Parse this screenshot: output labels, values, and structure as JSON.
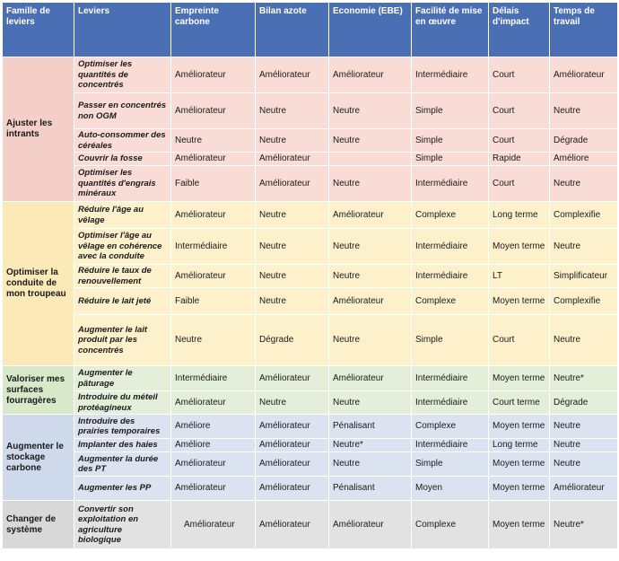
{
  "headers": [
    "Famille de leviers",
    "Leviers",
    "Empreinte carbone",
    "Bilan azote",
    "Economie (EBE)",
    "Facilité de mise en œuvre",
    "Délais d'impact",
    "Temps de travail"
  ],
  "groups": [
    {
      "famille": "Ajuster les intrants",
      "color": "#f9dcd6",
      "rows": [
        {
          "levier": "Optimiser les quantités de concentrés",
          "empreinte": "Améliorateur",
          "azote": "Améliorateur",
          "economie": "Améliorateur",
          "facilite": "Intermédiaire",
          "delais": "Court",
          "temps": "Améliorateur"
        },
        {
          "levier": "Passer en concentrés non OGM",
          "empreinte": "Améliorateur",
          "azote": "Neutre",
          "economie": "Neutre",
          "facilite": "Simple",
          "delais": "Court",
          "temps": "Neutre"
        },
        {
          "levier": "Auto-consommer des céréales",
          "empreinte": "Neutre",
          "azote": "Neutre",
          "economie": "Neutre",
          "facilite": "Simple",
          "delais": "Court",
          "temps": "Dégrade"
        },
        {
          "levier": "Couvrir la fosse",
          "empreinte": "Améliorateur",
          "azote": "Améliorateur",
          "economie": "",
          "facilite": "Simple",
          "delais": "Rapide",
          "temps": "Améliore"
        },
        {
          "levier": "Optimiser les quantités d'engrais minéraux",
          "empreinte": "Faible",
          "azote": "Améliorateur",
          "economie": "Neutre",
          "facilite": "Intermédiaire",
          "delais": "Court",
          "temps": "Neutre"
        }
      ]
    },
    {
      "famille": "Optimiser la conduite de mon troupeau",
      "color": "#fdf1cc",
      "rows": [
        {
          "levier": "Réduire l'âge au vêlage",
          "empreinte": "Améliorateur",
          "azote": "Neutre",
          "economie": "Améliorateur",
          "facilite": "Complexe",
          "delais": "Long terme",
          "temps": "Complexifie"
        },
        {
          "levier": "Optimiser l'âge au vêlage en cohérence avec la conduite",
          "empreinte": "Intermédiaire",
          "azote": "Neutre",
          "economie": "Neutre",
          "facilite": "Intermédiaire",
          "delais": "Moyen terme",
          "temps": "Neutre"
        },
        {
          "levier": "Réduire le taux de renouvellement",
          "empreinte": "Améliorateur",
          "azote": "Neutre",
          "economie": "Neutre",
          "facilite": "Intermédiaire",
          "delais": "LT",
          "temps": "Simplificateur"
        },
        {
          "levier": "Réduire le lait jeté",
          "empreinte": "Faible",
          "azote": "Neutre",
          "economie": "Améliorateur",
          "facilite": "Complexe",
          "delais": "Moyen terme",
          "temps": "Complexifie"
        },
        {
          "levier": "Augmenter le lait produit par les concentrés",
          "empreinte": "Neutre",
          "azote": "Dégrade",
          "economie": "Neutre",
          "facilite": "Simple",
          "delais": "Court",
          "temps": "Neutre"
        }
      ]
    },
    {
      "famille": "Valoriser mes surfaces fourragères",
      "color": "#e3efd8",
      "rows": [
        {
          "levier": "Augmenter le pâturage",
          "empreinte": "Intermédiaire",
          "azote": "Améliorateur",
          "economie": "Améliorateur",
          "facilite": "Intermédiaire",
          "delais": "Moyen terme",
          "temps": "Neutre*"
        },
        {
          "levier": "Introduire du méteil protéagineux",
          "empreinte": "Améliorateur",
          "azote": "Neutre",
          "economie": "Neutre",
          "facilite": "Intermédiaire",
          "delais": "Court terme",
          "temps": "Dégrade"
        }
      ]
    },
    {
      "famille": "Augmenter le stockage carbone",
      "color": "#dbe3f1",
      "rows": [
        {
          "levier": "Introduire des prairies temporaires",
          "empreinte": "Améliore",
          "azote": "Améliorateur",
          "economie": "Pénalisant",
          "facilite": "Complexe",
          "delais": "Moyen terme",
          "temps": "Neutre"
        },
        {
          "levier": "Implanter des haies",
          "empreinte": "Améliore",
          "azote": "Améliorateur",
          "economie": "Neutre*",
          "facilite": "Intermédiaire",
          "delais": "Long terme",
          "temps": "Neutre"
        },
        {
          "levier": "Augmenter la durée des PT",
          "empreinte": "Améliorateur",
          "azote": "Améliorateur",
          "economie": "Neutre",
          "facilite": "Simple",
          "delais": "Moyen terme",
          "temps": "Neutre"
        },
        {
          "levier": "Augmenter les PP",
          "empreinte": "Améliorateur",
          "azote": "Améliorateur",
          "economie": "Pénalisant",
          "facilite": "Moyen",
          "delais": "Moyen terme",
          "temps": "Améliorateur"
        }
      ]
    },
    {
      "famille": "Changer de système",
      "color": "#e2e2e2",
      "rows": [
        {
          "levier": "Convertir son exploitation en agriculture biologique",
          "empreinte": "Améliorateur",
          "azote": "Améliorateur",
          "economie": "Améliorateur",
          "facilite": "Complexe",
          "delais": "Moyen terme",
          "temps": "Neutre*"
        }
      ]
    }
  ]
}
